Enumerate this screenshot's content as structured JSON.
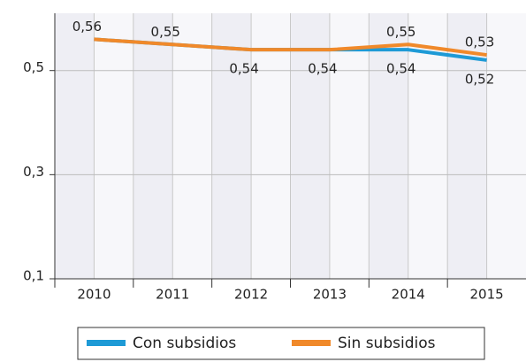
{
  "chart_data": {
    "type": "line",
    "categories": [
      "2010",
      "2011",
      "2012",
      "2013",
      "2014",
      "2015"
    ],
    "series": [
      {
        "name": "Con subsidios",
        "color": "#1e9ad6",
        "values": [
          0.56,
          0.55,
          0.54,
          0.54,
          0.54,
          0.52
        ],
        "value_labels": [
          null,
          null,
          "0,54",
          "0,54",
          "0,54",
          "0,52"
        ]
      },
      {
        "name": "Sin subsidios",
        "color": "#f0892a",
        "values": [
          0.56,
          0.55,
          0.54,
          0.54,
          0.55,
          0.53
        ],
        "value_labels": [
          "0,56",
          "0,55",
          null,
          null,
          "0,55",
          "0,53"
        ]
      }
    ],
    "ylim": [
      0.1,
      0.61
    ],
    "yticks": [
      {
        "value": 0.1,
        "label": "0,1"
      },
      {
        "value": 0.3,
        "label": "0,3"
      },
      {
        "value": 0.5,
        "label": "0,5"
      }
    ],
    "grid": true
  }
}
